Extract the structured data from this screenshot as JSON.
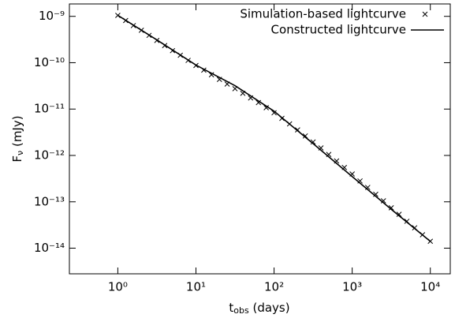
{
  "chart_data": {
    "type": "line",
    "xlabel": [
      "t",
      "obs",
      " (days)"
    ],
    "ylabel": [
      "F",
      "ν",
      " (mJy)"
    ],
    "log_x": true,
    "log_y": true,
    "xlim": [
      0.24,
      18000
    ],
    "ylim": [
      2.8e-15,
      1.85e-09
    ],
    "xticks": [
      {
        "value": 1,
        "label": "10⁰"
      },
      {
        "value": 10,
        "label": "10¹"
      },
      {
        "value": 100,
        "label": "10²"
      },
      {
        "value": 1000,
        "label": "10³"
      },
      {
        "value": 10000,
        "label": "10⁴"
      }
    ],
    "yticks": [
      {
        "value": 1e-14,
        "label": "10⁻¹⁴"
      },
      {
        "value": 1e-13,
        "label": "10⁻¹³"
      },
      {
        "value": 1e-12,
        "label": "10⁻¹²"
      },
      {
        "value": 1e-11,
        "label": "10⁻¹¹"
      },
      {
        "value": 1e-10,
        "label": "10⁻¹⁰"
      },
      {
        "value": 1e-09,
        "label": "10⁻⁹"
      }
    ],
    "legend": "upper right",
    "series": [
      {
        "name": "Simulation-based lightcurve",
        "type": "scatter",
        "color": "#000000",
        "x": [
          1,
          1.26,
          1.58,
          2,
          2.51,
          3.16,
          3.98,
          5.01,
          6.31,
          7.94,
          10,
          12.6,
          15.8,
          20,
          25.1,
          31.6,
          39.8,
          50.1,
          63.1,
          79.4,
          100,
          126,
          158,
          200,
          251,
          316,
          398,
          501,
          631,
          794,
          1000,
          1260,
          1580,
          2000,
          2510,
          3160,
          3980,
          5010,
          6310,
          7940,
          10000
        ],
        "values": [
          1.047e-09,
          8.13e-10,
          6.31e-10,
          5.01e-10,
          3.89e-10,
          3.02e-10,
          2.34e-10,
          1.82e-10,
          1.45e-10,
          1.12e-10,
          8.71e-11,
          6.92e-11,
          5.5e-11,
          4.37e-11,
          3.47e-11,
          2.75e-11,
          2.19e-11,
          1.74e-11,
          1.38e-11,
          1.07e-11,
          8.32e-12,
          6.31e-12,
          4.79e-12,
          3.55e-12,
          2.63e-12,
          1.95e-12,
          1.45e-12,
          1.05e-12,
          7.59e-13,
          5.5e-13,
          3.98e-13,
          2.82e-13,
          2.04e-13,
          1.45e-13,
          1.05e-13,
          7.41e-14,
          5.37e-14,
          3.8e-14,
          2.75e-14,
          1.95e-14,
          1.41e-14
        ]
      },
      {
        "name": "Constructed lightcurve",
        "type": "line",
        "color": "#000000",
        "x": [
          1,
          3.16,
          10,
          31.6,
          100,
          316,
          1000,
          3160,
          10000
        ],
        "values": [
          1.05e-09,
          3.1e-10,
          8.9e-11,
          3.2e-11,
          9e-12,
          1.8e-12,
          3.5e-13,
          6.9e-14,
          1.4e-14
        ]
      }
    ]
  }
}
